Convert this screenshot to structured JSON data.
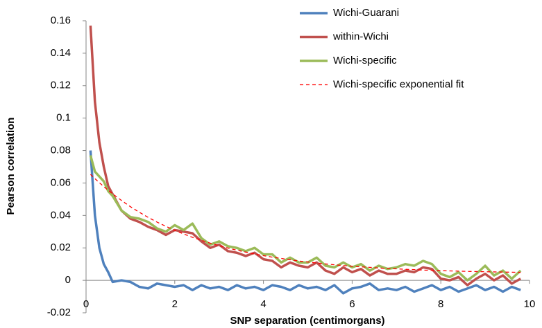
{
  "chart_data": {
    "type": "line",
    "x_label": "SNP separation (centimorgans)",
    "y_label": "Pearson correlation",
    "xlim": [
      0,
      10
    ],
    "xticks": [
      0,
      2,
      4,
      6,
      8,
      10
    ],
    "ylim": [
      -0.02,
      0.16
    ],
    "yticks": [
      -0.02,
      0,
      0.02,
      0.04,
      0.06,
      0.08,
      0.1,
      0.12,
      0.14,
      0.16
    ],
    "legend": "top-right",
    "x": [
      0.1,
      0.2,
      0.3,
      0.4,
      0.5,
      0.6,
      0.8,
      1.0,
      1.2,
      1.4,
      1.6,
      1.8,
      2.0,
      2.2,
      2.4,
      2.6,
      2.8,
      3.0,
      3.2,
      3.4,
      3.6,
      3.8,
      4.0,
      4.2,
      4.4,
      4.6,
      4.8,
      5.0,
      5.2,
      5.4,
      5.6,
      5.8,
      6.0,
      6.2,
      6.4,
      6.6,
      6.8,
      7.0,
      7.2,
      7.4,
      7.6,
      7.8,
      8.0,
      8.2,
      8.4,
      8.6,
      8.8,
      9.0,
      9.2,
      9.4,
      9.6,
      9.8
    ],
    "series": [
      {
        "name": "Wichi-Guarani",
        "color": "#4f81bd",
        "style": "solid",
        "values": [
          0.08,
          0.04,
          0.02,
          0.01,
          0.005,
          -0.001,
          0.0,
          -0.001,
          -0.004,
          -0.005,
          -0.002,
          -0.003,
          -0.004,
          -0.003,
          -0.006,
          -0.003,
          -0.005,
          -0.004,
          -0.006,
          -0.003,
          -0.005,
          -0.004,
          -0.006,
          -0.003,
          -0.004,
          -0.006,
          -0.003,
          -0.005,
          -0.004,
          -0.006,
          -0.003,
          -0.008,
          -0.005,
          -0.004,
          -0.002,
          -0.006,
          -0.005,
          -0.006,
          -0.004,
          -0.007,
          -0.005,
          -0.003,
          -0.006,
          -0.004,
          -0.007,
          -0.005,
          -0.003,
          -0.006,
          -0.004,
          -0.007,
          -0.004,
          -0.006
        ]
      },
      {
        "name": "within-Wichi",
        "color": "#c0504d",
        "style": "solid",
        "values": [
          0.157,
          0.11,
          0.085,
          0.07,
          0.058,
          0.053,
          0.043,
          0.038,
          0.036,
          0.033,
          0.031,
          0.028,
          0.031,
          0.03,
          0.029,
          0.024,
          0.02,
          0.022,
          0.018,
          0.017,
          0.015,
          0.017,
          0.013,
          0.012,
          0.008,
          0.011,
          0.009,
          0.008,
          0.011,
          0.006,
          0.004,
          0.008,
          0.005,
          0.007,
          0.003,
          0.006,
          0.004,
          0.004,
          0.006,
          0.005,
          0.008,
          0.007,
          0.001,
          0.0,
          0.002,
          -0.003,
          0.001,
          0.004,
          0.0,
          0.003,
          -0.002,
          0.001
        ]
      },
      {
        "name": "Wichi-specific",
        "color": "#9bbb59",
        "style": "solid",
        "values": [
          0.077,
          0.067,
          0.064,
          0.061,
          0.055,
          0.052,
          0.043,
          0.039,
          0.038,
          0.036,
          0.032,
          0.03,
          0.034,
          0.031,
          0.035,
          0.026,
          0.022,
          0.024,
          0.021,
          0.02,
          0.018,
          0.02,
          0.016,
          0.016,
          0.011,
          0.014,
          0.011,
          0.011,
          0.014,
          0.009,
          0.008,
          0.011,
          0.008,
          0.01,
          0.006,
          0.009,
          0.007,
          0.008,
          0.01,
          0.009,
          0.012,
          0.01,
          0.004,
          0.002,
          0.005,
          0.0,
          0.004,
          0.009,
          0.003,
          0.006,
          0.001,
          0.006
        ]
      },
      {
        "name": "Wichi-specific exponential fit",
        "color": "#ff0000",
        "style": "dashed",
        "values": [
          0.0653,
          0.0627,
          0.0602,
          0.0578,
          0.0555,
          0.0533,
          0.0492,
          0.0454,
          0.042,
          0.0388,
          0.0359,
          0.0333,
          0.0308,
          0.0286,
          0.0265,
          0.0247,
          0.0229,
          0.0214,
          0.0199,
          0.0186,
          0.0174,
          0.0163,
          0.0152,
          0.0143,
          0.0135,
          0.0127,
          0.0119,
          0.0113,
          0.0107,
          0.0101,
          0.0096,
          0.0091,
          0.0087,
          0.0083,
          0.008,
          0.0076,
          0.0073,
          0.0071,
          0.0068,
          0.0066,
          0.0063,
          0.0062,
          0.006,
          0.0058,
          0.0057,
          0.0055,
          0.0054,
          0.0053,
          0.0052,
          0.0051,
          0.005,
          0.0049
        ]
      }
    ]
  }
}
